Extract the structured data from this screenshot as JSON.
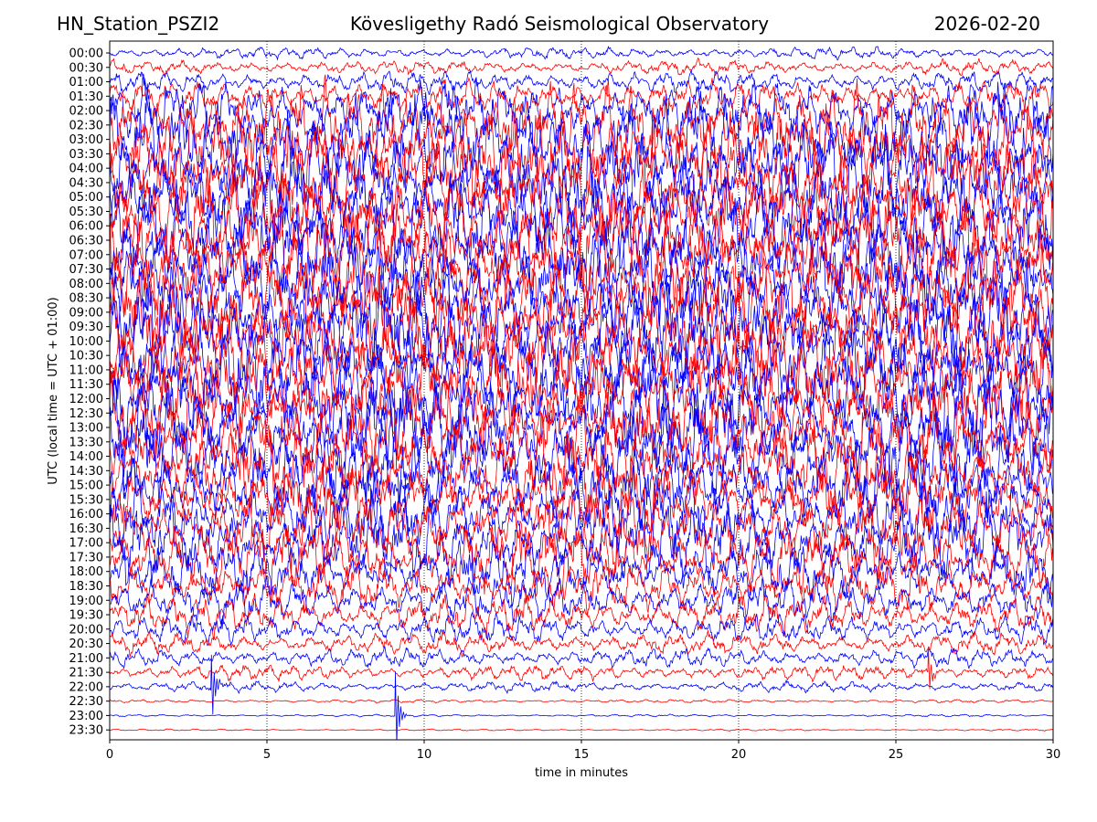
{
  "header": {
    "station": "HN_Station_PSZI2",
    "observatory": "Kövesligethy Radó Seismological Observatory",
    "date": "2026-02-20"
  },
  "chart_data": {
    "type": "line",
    "title": "Kövesligethy Radó Seismological Observatory",
    "xlabel": "time in minutes",
    "ylabel": "UTC (local time = UTC + 01:00)",
    "xlim": [
      0,
      30
    ],
    "x_ticks": [
      0,
      5,
      10,
      15,
      20,
      25,
      30
    ],
    "x_tick_labels": [
      "0",
      "5",
      "10",
      "15",
      "20",
      "25",
      "30"
    ],
    "rows": [
      "00:00",
      "00:30",
      "01:00",
      "01:30",
      "02:00",
      "02:30",
      "03:00",
      "03:30",
      "04:00",
      "04:30",
      "05:00",
      "05:30",
      "06:00",
      "06:30",
      "07:00",
      "07:30",
      "08:00",
      "08:30",
      "09:00",
      "09:30",
      "10:00",
      "10:30",
      "11:00",
      "11:30",
      "12:00",
      "12:30",
      "13:00",
      "13:30",
      "14:00",
      "14:30",
      "15:00",
      "15:30",
      "16:00",
      "16:30",
      "17:00",
      "17:30",
      "18:00",
      "18:30",
      "19:00",
      "19:30",
      "20:00",
      "20:30",
      "21:00",
      "21:30",
      "22:00",
      "22:30",
      "23:00",
      "23:30"
    ],
    "row_amplitude": [
      0.5,
      0.6,
      0.9,
      1.3,
      2.6,
      3.4,
      4.0,
      4.0,
      4.0,
      4.0,
      4.0,
      4.0,
      4.0,
      4.0,
      4.0,
      4.0,
      4.0,
      4.0,
      4.0,
      4.0,
      4.0,
      4.0,
      4.0,
      4.0,
      4.0,
      4.0,
      4.0,
      4.0,
      3.9,
      3.6,
      3.3,
      3.0,
      3.2,
      3.1,
      3.4,
      3.0,
      2.4,
      2.1,
      1.9,
      1.6,
      1.2,
      0.9,
      0.8,
      0.65,
      0.45,
      0.14,
      0.1,
      0.08
    ],
    "series_colors": [
      "#0000ff",
      "#ff0000"
    ],
    "grid_x": true,
    "events": [
      {
        "row": "23:00",
        "minute": 9.05,
        "amplitude": 1.1
      },
      {
        "row": "22:00",
        "minute": 3.2,
        "amplitude": 0.9
      },
      {
        "row": "21:30",
        "minute": 26.0,
        "amplitude": 0.6
      }
    ]
  }
}
